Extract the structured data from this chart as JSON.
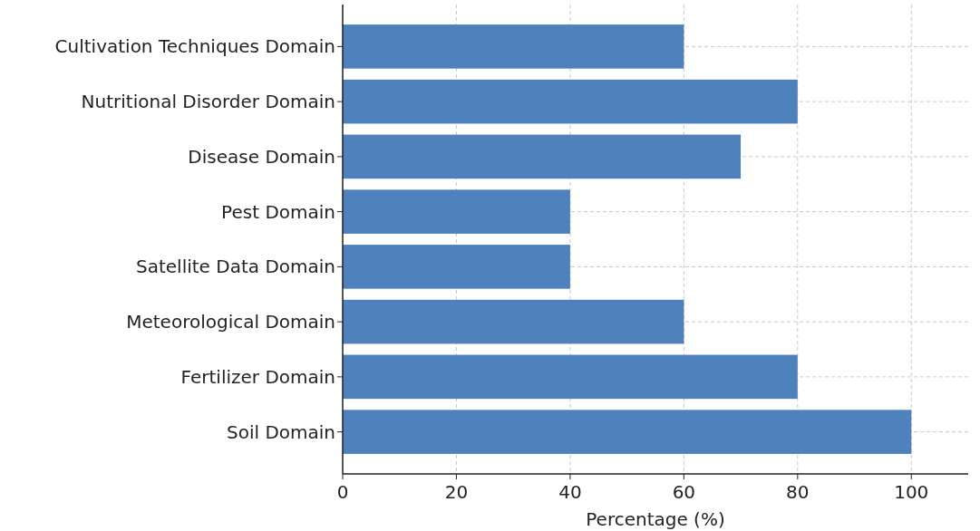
{
  "chart_data": {
    "type": "bar",
    "orientation": "horizontal",
    "xlabel": "Percentage (%)",
    "categories": [
      "Cultivation Techniques Domain",
      "Nutritional Disorder Domain",
      "Disease Domain",
      "Pest Domain",
      "Satellite Data Domain",
      "Meteorological Domain",
      "Fertilizer Domain",
      "Soil Domain"
    ],
    "values": [
      60,
      80,
      70,
      40,
      40,
      60,
      80,
      100
    ],
    "color": "#4f81bd",
    "xlim": [
      0,
      110
    ],
    "xticks": [
      0,
      20,
      40,
      60,
      80,
      100
    ],
    "grid": true
  }
}
